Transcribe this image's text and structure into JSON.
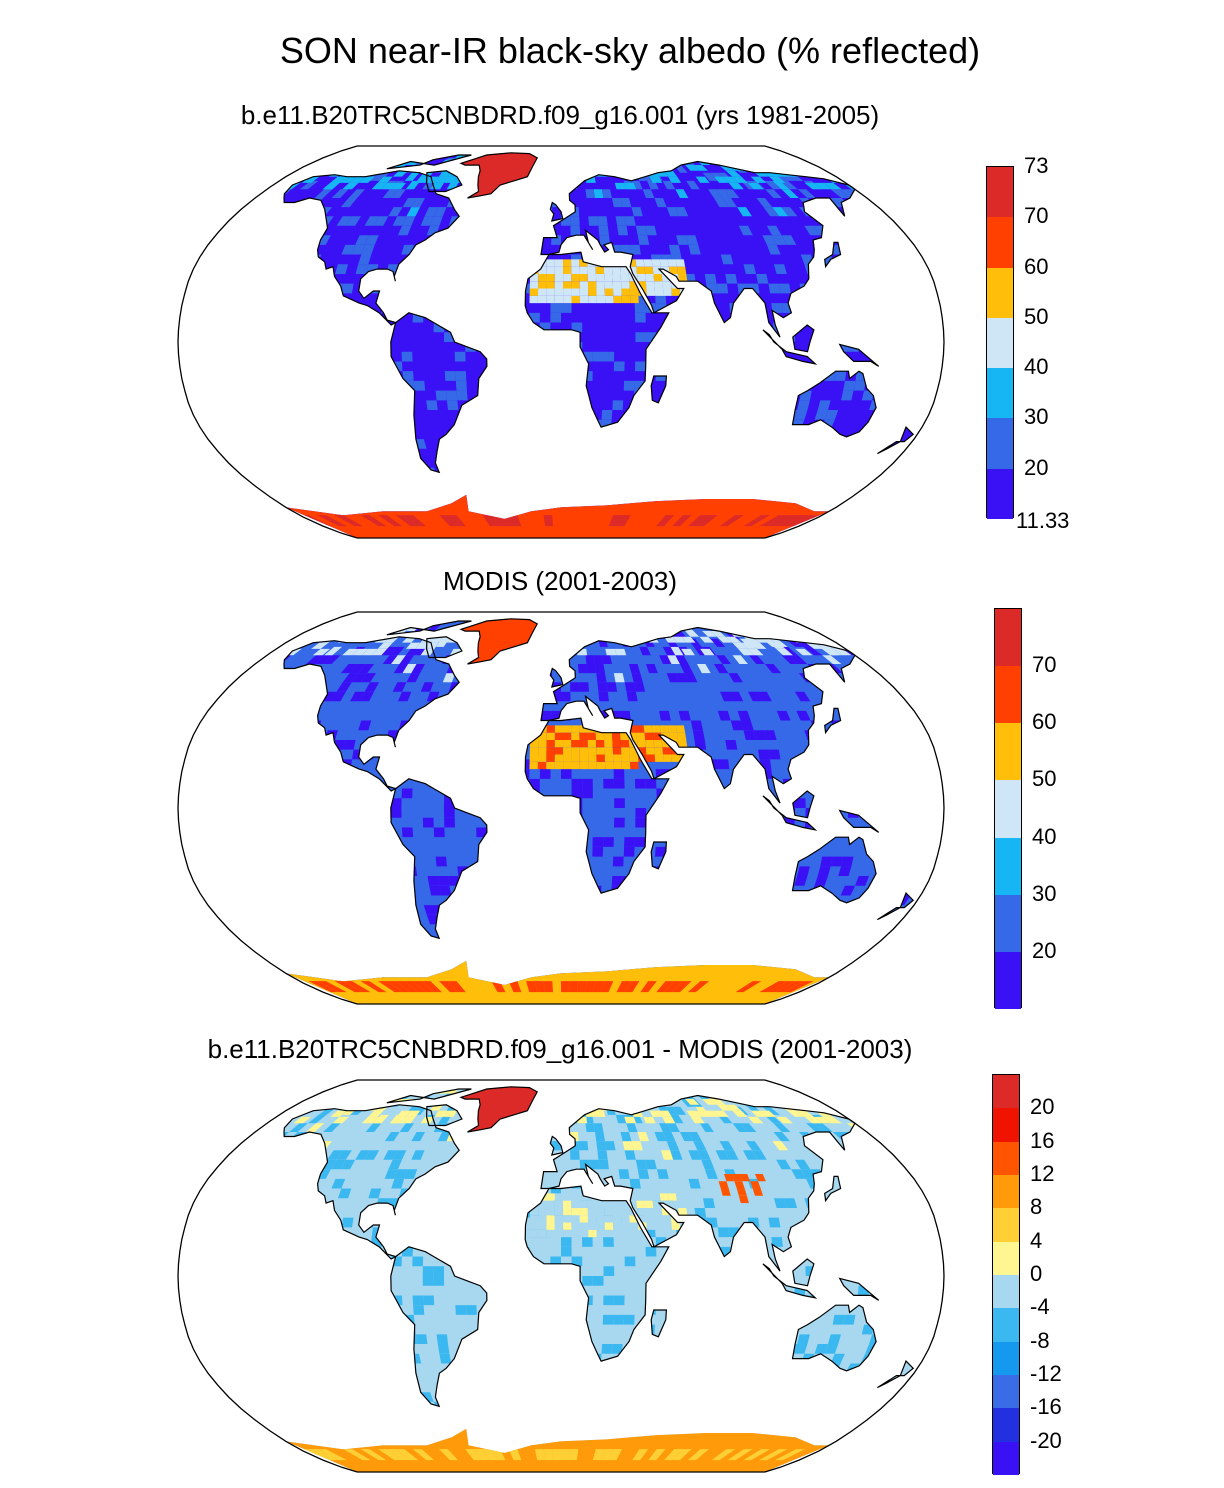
{
  "title": "SON near-IR black-sky albedo (% reflected)",
  "panels": [
    {
      "title": "b.e11.B20TRC5CNBDRD.f09_g16.001 (yrs 1981-2005)",
      "colorbar": {
        "colors": [
          "#3a10f5",
          "#3569e8",
          "#16b6f5",
          "#cfe6f7",
          "#ffbe0a",
          "#ff4000",
          "#dc2a28"
        ],
        "labels": [
          "11.33",
          "20",
          "30",
          "40",
          "50",
          "60",
          "70",
          "73"
        ]
      }
    },
    {
      "title": "MODIS (2001-2003)",
      "colorbar": {
        "colors": [
          "#3a10f5",
          "#3569e8",
          "#16b6f5",
          "#cfe6f7",
          "#ffbe0a",
          "#ff4000",
          "#dc2a28"
        ],
        "labels": [
          "20",
          "30",
          "40",
          "50",
          "60",
          "70"
        ]
      }
    },
    {
      "title": "b.e11.B20TRC5CNBDRD.f09_g16.001 - MODIS (2001-2003)",
      "colorbar": {
        "colors": [
          "#3a10f5",
          "#2230e0",
          "#3b6ce8",
          "#1499ef",
          "#3cb8f0",
          "#a7d8f0",
          "#fff591",
          "#ffd035",
          "#ff9a0a",
          "#ff5500",
          "#f01400",
          "#dc2a28"
        ],
        "labels": [
          "-20",
          "-16",
          "-12",
          "-8",
          "-4",
          "0",
          "4",
          "8",
          "12",
          "16",
          "20"
        ]
      }
    }
  ],
  "land_palettes": {
    "panel_1": {
      "base": "#3a10f5",
      "alt": "#3569e8",
      "desert": "#cfe6f7",
      "desert_hot": "#ffbe0a",
      "ice": "#ff4000",
      "ice_hot": "#dc2a28",
      "snow": "#16b6f5"
    },
    "panel_2": {
      "base": "#3569e8",
      "alt": "#3a10f5",
      "desert": "#ffbe0a",
      "desert_hot": "#ff4000",
      "ice": "#ffbe0a",
      "ice_hot": "#ff4000",
      "snow": "#cfe6f7"
    },
    "panel_3": {
      "base": "#a7d8f0",
      "alt": "#3cb8f0",
      "desert": "#a7d8f0",
      "desert_hot": "#fff591",
      "ice": "#ff9a0a",
      "ice_hot": "#ffd035",
      "snow": "#fff591",
      "greenland": "#dc2a28",
      "tibet": "#ff5500"
    }
  }
}
